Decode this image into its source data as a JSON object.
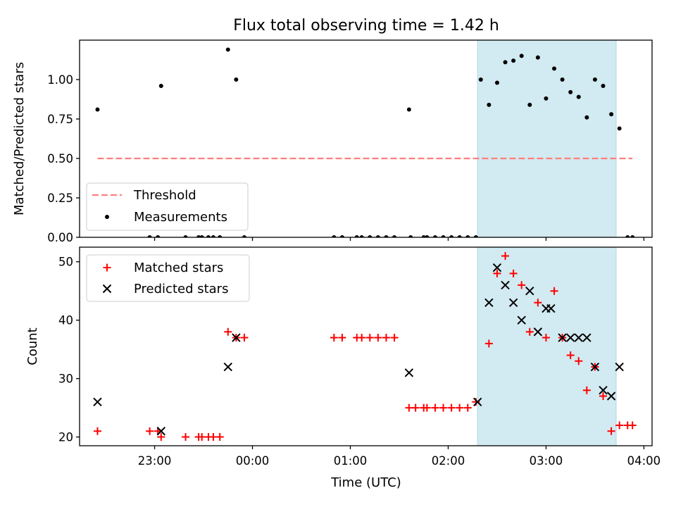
{
  "chart_data": [
    {
      "type": "scatter",
      "title": "Flux total observing time = 1.42 h",
      "xlabel": "",
      "ylabel": "Matched/Predicted stars",
      "xlim": [
        "22:14",
        "04:05"
      ],
      "ylim": [
        0,
        1.25
      ],
      "yticks": [
        "0.00",
        "0.25",
        "0.50",
        "0.75",
        "1.00"
      ],
      "highlight_interval": [
        "02:18",
        "03:43"
      ],
      "highlight_color": "#add8e6",
      "legend_position": "lower-left",
      "series": [
        {
          "name": "Threshold",
          "style": "dashed-line",
          "color": "#ff7f7f",
          "x": [
            "22:25",
            "03:53"
          ],
          "y": [
            0.5,
            0.5
          ]
        },
        {
          "name": "Measurements",
          "style": "dot",
          "color": "#000000",
          "points": [
            [
              "22:25",
              0.81
            ],
            [
              "22:57",
              0.0
            ],
            [
              "23:02",
              0.0
            ],
            [
              "23:04",
              0.96
            ],
            [
              "23:19",
              0.0
            ],
            [
              "23:27",
              0.0
            ],
            [
              "23:29",
              0.0
            ],
            [
              "23:33",
              0.0
            ],
            [
              "23:36",
              0.0
            ],
            [
              "23:40",
              0.0
            ],
            [
              "23:45",
              1.19
            ],
            [
              "23:50",
              1.0
            ],
            [
              "23:55",
              0.0
            ],
            [
              "00:50",
              0.0
            ],
            [
              "00:55",
              0.0
            ],
            [
              "01:04",
              0.0
            ],
            [
              "01:07",
              0.0
            ],
            [
              "01:12",
              0.0
            ],
            [
              "01:17",
              0.0
            ],
            [
              "01:22",
              0.0
            ],
            [
              "01:27",
              0.0
            ],
            [
              "01:36",
              0.81
            ],
            [
              "01:37",
              0.0
            ],
            [
              "01:45",
              0.0
            ],
            [
              "01:47",
              0.0
            ],
            [
              "01:52",
              0.0
            ],
            [
              "01:57",
              0.0
            ],
            [
              "02:02",
              0.0
            ],
            [
              "02:07",
              0.0
            ],
            [
              "02:12",
              0.0
            ],
            [
              "02:17",
              0.0
            ],
            [
              "02:20",
              1.0
            ],
            [
              "02:25",
              0.84
            ],
            [
              "02:30",
              0.98
            ],
            [
              "02:35",
              1.11
            ],
            [
              "02:40",
              1.12
            ],
            [
              "02:45",
              1.15
            ],
            [
              "02:50",
              0.84
            ],
            [
              "02:55",
              1.14
            ],
            [
              "03:00",
              0.88
            ],
            [
              "03:05",
              1.07
            ],
            [
              "03:10",
              1.0
            ],
            [
              "03:15",
              0.92
            ],
            [
              "03:20",
              0.89
            ],
            [
              "03:25",
              0.76
            ],
            [
              "03:30",
              1.0
            ],
            [
              "03:35",
              0.96
            ],
            [
              "03:40",
              0.78
            ],
            [
              "03:45",
              0.69
            ],
            [
              "03:50",
              0.0
            ],
            [
              "03:53",
              0.0
            ]
          ]
        }
      ]
    },
    {
      "type": "scatter",
      "title": "",
      "xlabel": "Time (UTC)",
      "ylabel": "Count",
      "xlim": [
        "22:14",
        "04:05"
      ],
      "ylim": [
        18.5,
        52.5
      ],
      "xticks": [
        "23:00",
        "00:00",
        "01:00",
        "02:00",
        "03:00",
        "04:00"
      ],
      "yticks": [
        "20",
        "30",
        "40",
        "50"
      ],
      "highlight_interval": [
        "02:18",
        "03:43"
      ],
      "highlight_color": "#add8e6",
      "legend_position": "upper-left",
      "series": [
        {
          "name": "Matched stars",
          "style": "plus",
          "color": "#ff0000",
          "points": [
            [
              "22:25",
              21
            ],
            [
              "22:57",
              21
            ],
            [
              "23:02",
              21
            ],
            [
              "23:04",
              20
            ],
            [
              "23:19",
              20
            ],
            [
              "23:27",
              20
            ],
            [
              "23:29",
              20
            ],
            [
              "23:33",
              20
            ],
            [
              "23:36",
              20
            ],
            [
              "23:40",
              20
            ],
            [
              "23:45",
              38
            ],
            [
              "23:50",
              37
            ],
            [
              "23:55",
              37
            ],
            [
              "00:50",
              37
            ],
            [
              "00:55",
              37
            ],
            [
              "01:04",
              37
            ],
            [
              "01:07",
              37
            ],
            [
              "01:12",
              37
            ],
            [
              "01:17",
              37
            ],
            [
              "01:22",
              37
            ],
            [
              "01:27",
              37
            ],
            [
              "01:36",
              25
            ],
            [
              "01:40",
              25
            ],
            [
              "01:45",
              25
            ],
            [
              "01:47",
              25
            ],
            [
              "01:52",
              25
            ],
            [
              "01:57",
              25
            ],
            [
              "02:02",
              25
            ],
            [
              "02:07",
              25
            ],
            [
              "02:12",
              25
            ],
            [
              "02:17",
              26
            ],
            [
              "02:25",
              36
            ],
            [
              "02:30",
              48
            ],
            [
              "02:35",
              51
            ],
            [
              "02:40",
              48
            ],
            [
              "02:45",
              46
            ],
            [
              "02:50",
              38
            ],
            [
              "02:55",
              43
            ],
            [
              "03:00",
              37
            ],
            [
              "03:05",
              45
            ],
            [
              "03:10",
              37
            ],
            [
              "03:15",
              34
            ],
            [
              "03:20",
              33
            ],
            [
              "03:25",
              28
            ],
            [
              "03:30",
              32
            ],
            [
              "03:35",
              27
            ],
            [
              "03:40",
              21
            ],
            [
              "03:45",
              22
            ],
            [
              "03:50",
              22
            ],
            [
              "03:53",
              22
            ]
          ]
        },
        {
          "name": "Predicted stars",
          "style": "x",
          "color": "#000000",
          "points": [
            [
              "22:25",
              26
            ],
            [
              "23:04",
              21
            ],
            [
              "23:45",
              32
            ],
            [
              "23:50",
              37
            ],
            [
              "01:36",
              31
            ],
            [
              "02:18",
              26
            ],
            [
              "02:25",
              43
            ],
            [
              "02:30",
              49
            ],
            [
              "02:35",
              46
            ],
            [
              "02:40",
              43
            ],
            [
              "02:45",
              40
            ],
            [
              "02:50",
              45
            ],
            [
              "02:55",
              38
            ],
            [
              "03:00",
              42
            ],
            [
              "03:03",
              42
            ],
            [
              "03:10",
              37
            ],
            [
              "03:15",
              37
            ],
            [
              "03:20",
              37
            ],
            [
              "03:25",
              37
            ],
            [
              "03:30",
              32
            ],
            [
              "03:35",
              28
            ],
            [
              "03:40",
              27
            ],
            [
              "03:45",
              32
            ]
          ]
        }
      ]
    }
  ]
}
